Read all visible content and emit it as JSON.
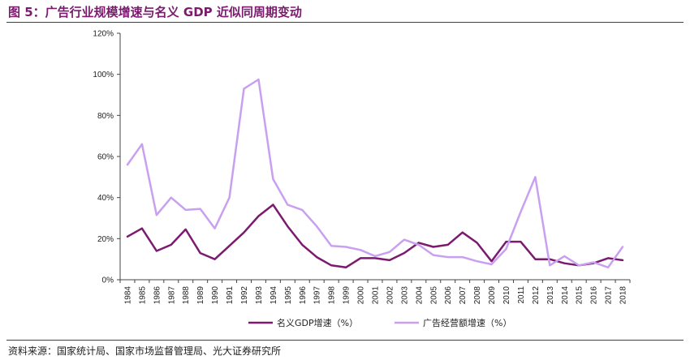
{
  "figure": {
    "title": "图 5：广告行业规模增速与名义 GDP 近似同周期变动",
    "source": "资料来源：国家统计局、国家市场监督管理局、光大证券研究所"
  },
  "colors": {
    "brand": "#7b1a6e",
    "gdp": "#7b1a6e",
    "ad": "#c9a0f0",
    "axis": "#444444"
  },
  "chart_data": {
    "type": "line",
    "title": "",
    "xlabel": "",
    "ylabel": "",
    "ylim": [
      0,
      120
    ],
    "yticks": [
      0,
      20,
      40,
      60,
      80,
      100,
      120
    ],
    "ytick_labels": [
      "0%",
      "20%",
      "40%",
      "60%",
      "80%",
      "100%",
      "120%"
    ],
    "legend_position": "bottom",
    "categories": [
      "1984",
      "1985",
      "1986",
      "1987",
      "1988",
      "1989",
      "1990",
      "1991",
      "1992",
      "1993",
      "1994",
      "1995",
      "1996",
      "1997",
      "1998",
      "1999",
      "2000",
      "2001",
      "2002",
      "2003",
      "2004",
      "2005",
      "2006",
      "2007",
      "2008",
      "2009",
      "2010",
      "2011",
      "2012",
      "2013",
      "2014",
      "2015",
      "2016",
      "2017",
      "2018"
    ],
    "series": [
      {
        "name": "名义GDP增速（%）",
        "color_key": "gdp",
        "values": [
          21,
          25,
          14,
          17,
          24.5,
          13,
          10,
          16.5,
          23,
          31,
          36.5,
          26,
          17,
          11,
          7,
          6,
          10.5,
          10.5,
          9.5,
          13,
          18,
          16,
          17,
          23,
          18,
          9,
          18.5,
          18.5,
          10,
          10,
          8,
          7,
          8,
          10.5,
          9.5
        ]
      },
      {
        "name": "广告经营额增速（%）",
        "color_key": "ad",
        "values": [
          56,
          66,
          31.5,
          40,
          34,
          34.5,
          25,
          40,
          93,
          97.5,
          49,
          36.5,
          34,
          26,
          16.5,
          16,
          14.5,
          11.5,
          13.5,
          19.5,
          17,
          12,
          11,
          11,
          9,
          7.5,
          15,
          33,
          50,
          7,
          11.5,
          7,
          8.5,
          6,
          16
        ]
      }
    ]
  }
}
